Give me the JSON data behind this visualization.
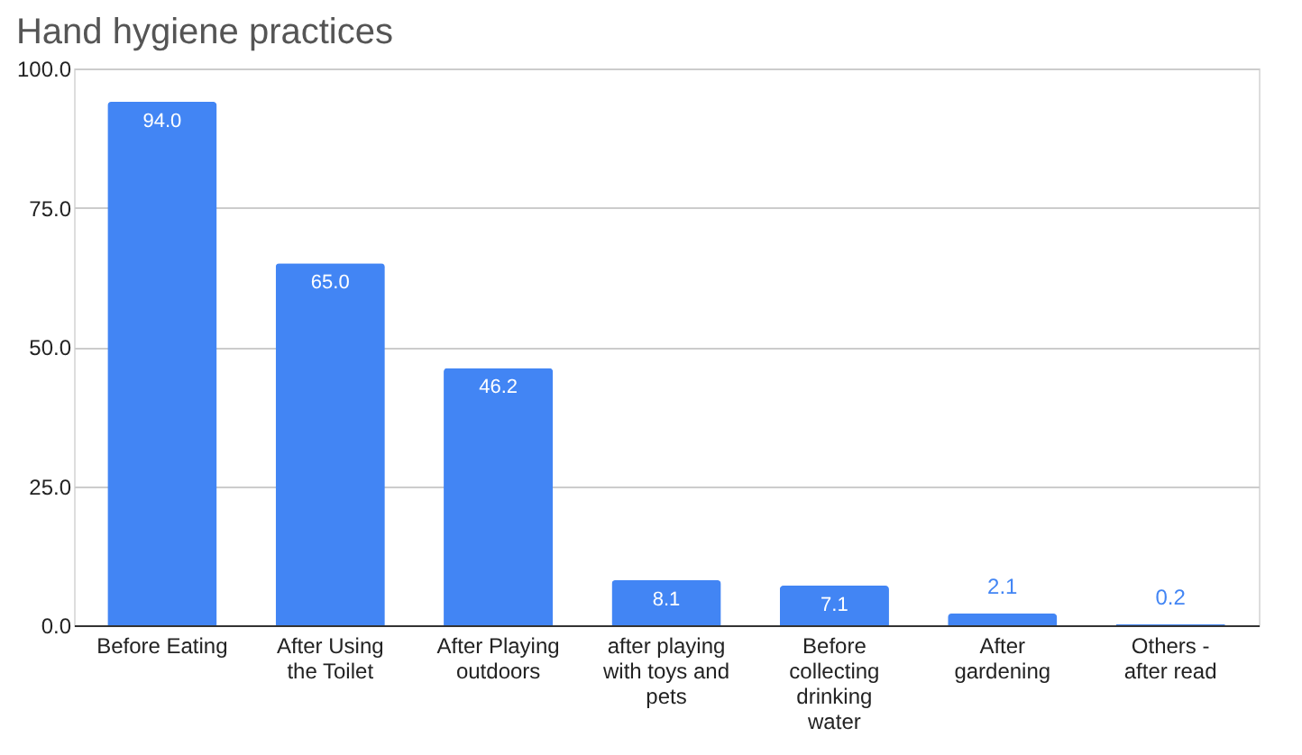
{
  "chart_data": {
    "type": "bar",
    "title": "Hand hygiene practices",
    "categories": [
      "Before Eating",
      "After Using the Toilet",
      "After Playing outdoors",
      "after playing with toys and pets",
      "Before collecting drinking water",
      "After gardening",
      "Others - after read"
    ],
    "values": [
      94.0,
      65.0,
      46.2,
      8.1,
      7.1,
      2.1,
      0.2
    ],
    "value_labels": [
      "94.0",
      "65.0",
      "46.2",
      "8.1",
      "7.1",
      "2.1",
      "0.2"
    ],
    "color": "#4285f4",
    "ylim": [
      0,
      100
    ],
    "yticks": [
      {
        "value": 0,
        "label": "0.0"
      },
      {
        "value": 25,
        "label": "25.0"
      },
      {
        "value": 50,
        "label": "50.0"
      },
      {
        "value": 75,
        "label": "75.0"
      },
      {
        "value": 100,
        "label": "100.0"
      }
    ],
    "grid": "y"
  }
}
